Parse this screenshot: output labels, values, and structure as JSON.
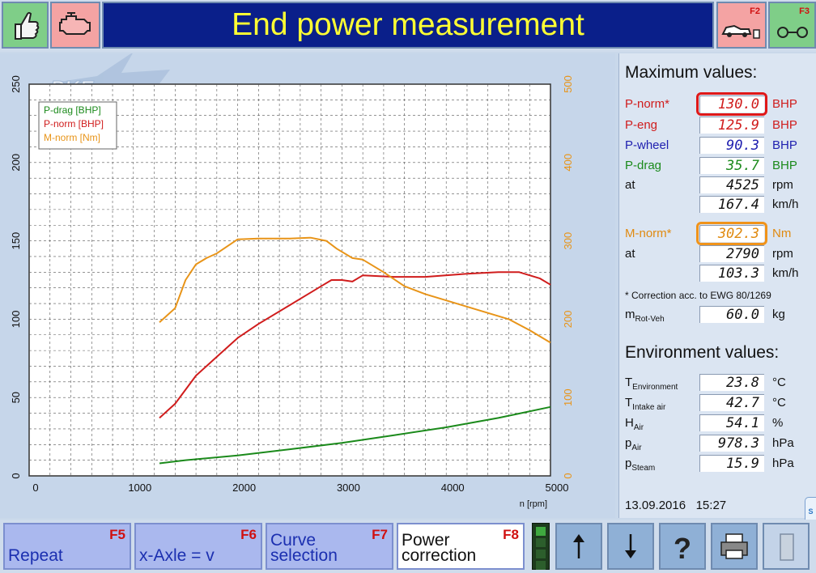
{
  "header": {
    "title": "End power measurement",
    "f2_key": "F2",
    "f3_key": "F3"
  },
  "colors": {
    "title_text": "#ffff33",
    "title_bg": "#0a1f8a",
    "p_drag": "#1b8a1b",
    "p_norm": "#d01c1c",
    "m_norm": "#e89418"
  },
  "logo_text": "PKE",
  "chart_data": {
    "type": "line",
    "x_label": "n [rpm]",
    "x_ticks": [
      "0",
      "1000",
      "2000",
      "3000",
      "4000",
      "5000"
    ],
    "xlim": [
      0,
      5000
    ],
    "y_left_ticks": [
      "0",
      "50",
      "100",
      "150",
      "200",
      "250"
    ],
    "ylim_left": [
      0,
      250
    ],
    "y_right_ticks": [
      "0",
      "100",
      "200",
      "300",
      "400",
      "500"
    ],
    "ylim_right": [
      0,
      500
    ],
    "grid": true,
    "legend_position": "top-left",
    "series": [
      {
        "name": "P-drag [BHP]",
        "axis": "left",
        "color": "#1b8a1b",
        "x": [
          1250,
          1500,
          2000,
          2500,
          3000,
          3500,
          4000,
          4500,
          5000
        ],
        "y": [
          8,
          10,
          13,
          17,
          21,
          26,
          31,
          37,
          44
        ]
      },
      {
        "name": "P-norm [BHP]",
        "axis": "left",
        "color": "#d01c1c",
        "x": [
          1250,
          1400,
          1600,
          1800,
          2000,
          2200,
          2500,
          2800,
          2900,
          3000,
          3100,
          3200,
          3500,
          3800,
          4200,
          4500,
          4700,
          4900,
          5000
        ],
        "y": [
          37,
          46,
          64,
          76,
          88,
          97,
          109,
          121,
          125,
          125,
          124,
          128,
          127,
          127,
          129,
          130,
          130,
          126,
          122
        ]
      },
      {
        "name": "M-norm [Nm]",
        "axis": "right",
        "color": "#e89418",
        "x": [
          1250,
          1400,
          1500,
          1600,
          1700,
          1800,
          2000,
          2200,
          2500,
          2700,
          2850,
          2950,
          3100,
          3200,
          3400,
          3600,
          3800,
          4000,
          4300,
          4600,
          4800,
          5000
        ],
        "y": [
          196,
          214,
          250,
          270,
          278,
          284,
          302,
          303,
          303,
          304,
          300,
          290,
          278,
          276,
          260,
          242,
          232,
          224,
          212,
          200,
          186,
          170
        ]
      }
    ]
  },
  "max_values": {
    "heading": "Maximum values:",
    "p_norm": {
      "label": "P-norm*",
      "value": "130.0",
      "unit": "BHP"
    },
    "p_eng": {
      "label": "P-eng",
      "value": "125.9",
      "unit": "BHP"
    },
    "p_wheel": {
      "label": "P-wheel",
      "value": "90.3",
      "unit": "BHP"
    },
    "p_drag": {
      "label": "P-drag",
      "value": "35.7",
      "unit": "BHP"
    },
    "p_at_label": "at",
    "p_at_rpm": {
      "value": "4525",
      "unit": "rpm"
    },
    "p_at_speed": {
      "value": "167.4",
      "unit": "km/h"
    },
    "m_norm": {
      "label": "M-norm*",
      "value": "302.3",
      "unit": "Nm"
    },
    "m_at_label": "at",
    "m_at_rpm": {
      "value": "2790",
      "unit": "rpm"
    },
    "m_at_speed": {
      "value": "103.3",
      "unit": "km/h"
    },
    "correction_note": "* Correction acc. to EWG 80/1269",
    "m_rot": {
      "label_main": "m",
      "label_sub": "Rot-Veh",
      "value": "60.0",
      "unit": "kg"
    }
  },
  "environment": {
    "heading": "Environment values:",
    "rows": [
      {
        "label_main": "T",
        "label_sub": "Environment",
        "value": "23.8",
        "unit": "°C"
      },
      {
        "label_main": "T",
        "label_sub": "Intake air",
        "value": "42.7",
        "unit": "°C"
      },
      {
        "label_main": "H",
        "label_sub": "Air",
        "value": "54.1",
        "unit": "%"
      },
      {
        "label_main": "p",
        "label_sub": "Air",
        "value": "978.3",
        "unit": "hPa"
      },
      {
        "label_main": "p",
        "label_sub": "Steam",
        "value": "15.9",
        "unit": "hPa"
      }
    ]
  },
  "datetime": {
    "date": "13.09.2016",
    "time": "15:27"
  },
  "toolbar": {
    "repeat": {
      "label": "Repeat",
      "key": "F5"
    },
    "x_axle": {
      "label": "x-Axle = v",
      "key": "F6"
    },
    "curve": {
      "label": "Curve\nselection",
      "key": "F7"
    },
    "power": {
      "label": "Power\ncorrection",
      "key": "F8"
    }
  }
}
